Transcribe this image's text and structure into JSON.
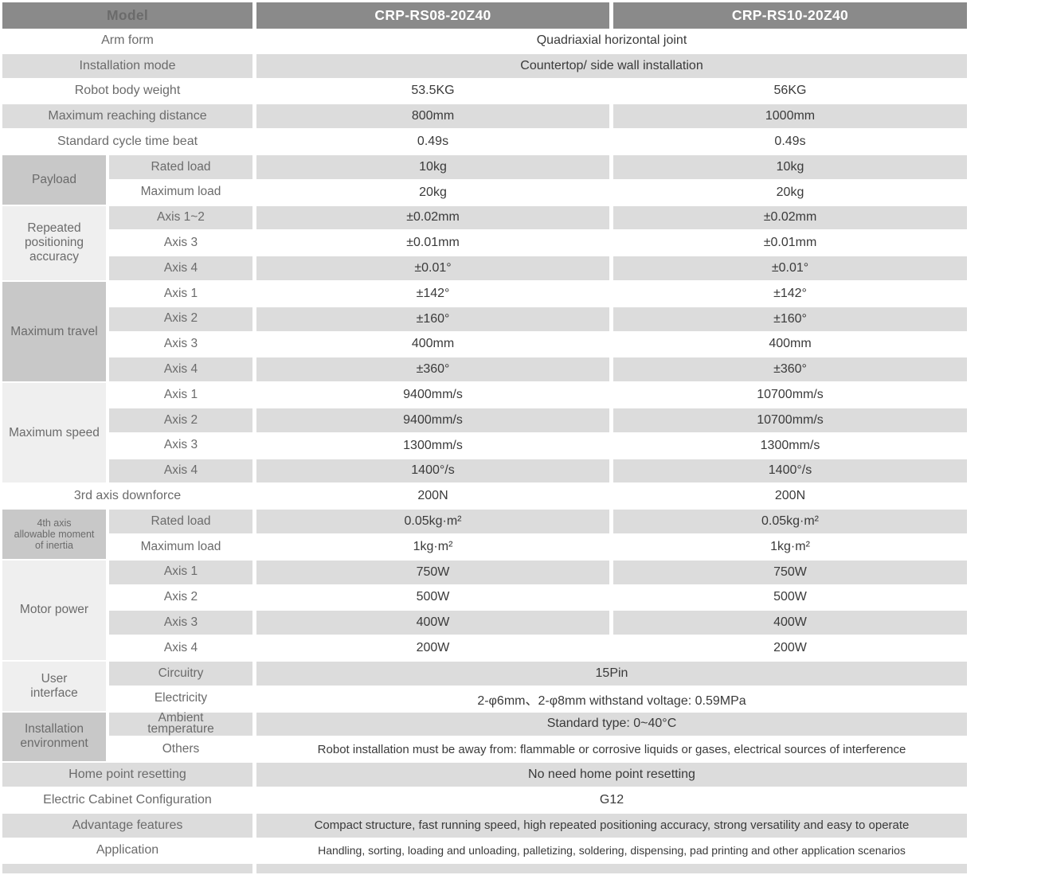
{
  "colors": {
    "header_bg": "#8a8a8a",
    "header_text": "#ffffff",
    "stripe_bg": "#dcdcdc",
    "group_dark_bg": "#c8c8c8",
    "group_light_bg": "#efefef",
    "label_text": "#6b6b6b",
    "value_text": "#3a3a3a"
  },
  "header": {
    "model": "Model",
    "rs08": "CRP-RS08-20Z40",
    "rs10": "CRP-RS10-20Z40"
  },
  "rows": {
    "arm_form": {
      "label": "Arm form",
      "value": "Quadriaxial horizontal joint"
    },
    "installation_mode": {
      "label": "Installation mode",
      "value": "Countertop/ side wall installation"
    },
    "robot_body_weight": {
      "label": "Robot body weight",
      "v1": "53.5KG",
      "v2": "56KG"
    },
    "max_reach": {
      "label": "Maximum reaching distance",
      "v1": "800mm",
      "v2": "1000mm"
    },
    "cycle_time": {
      "label": "Standard cycle time beat",
      "v1": "0.49s",
      "v2": "0.49s"
    },
    "downforce_3rd": {
      "label": "3rd axis downforce",
      "v1": "200N",
      "v2": "200N"
    },
    "home_reset": {
      "label": "Home point resetting",
      "value": "No need home point resetting"
    },
    "cabinet": {
      "label": "Electric Cabinet Configuration",
      "value": "G12"
    },
    "advantage": {
      "label": "Advantage features",
      "value": "Compact structure, fast running speed, high repeated positioning accuracy, strong versatility and easy to operate"
    },
    "application": {
      "label": "Application",
      "value": "Handling, sorting, loading and unloading, palletizing, soldering, dispensing, pad printing and other application scenarios"
    }
  },
  "groups": {
    "payload": {
      "label": "Payload",
      "rows": [
        {
          "label": "Rated load",
          "v1": "10kg",
          "v2": "10kg"
        },
        {
          "label": "Maximum load",
          "v1": "20kg",
          "v2": "20kg"
        }
      ]
    },
    "accuracy": {
      "label": "Repeated\npositioning\naccuracy",
      "rows": [
        {
          "label": "Axis 1~2",
          "v1": "±0.02mm",
          "v2": "±0.02mm"
        },
        {
          "label": "Axis 3",
          "v1": "±0.01mm",
          "v2": "±0.01mm"
        },
        {
          "label": "Axis 4",
          "v1": "±0.01°",
          "v2": "±0.01°"
        }
      ]
    },
    "travel": {
      "label": "Maximum travel",
      "rows": [
        {
          "label": "Axis 1",
          "v1": "±142°",
          "v2": "±142°"
        },
        {
          "label": "Axis 2",
          "v1": "±160°",
          "v2": "±160°"
        },
        {
          "label": "Axis 3",
          "v1": "400mm",
          "v2": "400mm"
        },
        {
          "label": "Axis 4",
          "v1": "±360°",
          "v2": "±360°"
        }
      ]
    },
    "speed": {
      "label": "Maximum speed",
      "rows": [
        {
          "label": "Axis 1",
          "v1": "9400mm/s",
          "v2": "10700mm/s"
        },
        {
          "label": "Axis 2",
          "v1": "9400mm/s",
          "v2": "10700mm/s"
        },
        {
          "label": "Axis 3",
          "v1": "1300mm/s",
          "v2": "1300mm/s"
        },
        {
          "label": "Axis 4",
          "v1": "1400°/s",
          "v2": "1400°/s"
        }
      ]
    },
    "inertia": {
      "label": "4th axis\nallowable moment\nof inertia",
      "rows": [
        {
          "label": "Rated load",
          "v1": "0.05kg·m²",
          "v2": "0.05kg·m²"
        },
        {
          "label": "Maximum load",
          "v1": "1kg·m²",
          "v2": "1kg·m²"
        }
      ]
    },
    "motor": {
      "label": "Motor power",
      "rows": [
        {
          "label": "Axis 1",
          "v1": "750W",
          "v2": "750W"
        },
        {
          "label": "Axis 2",
          "v1": "500W",
          "v2": "500W"
        },
        {
          "label": "Axis 3",
          "v1": "400W",
          "v2": "400W"
        },
        {
          "label": "Axis 4",
          "v1": "200W",
          "v2": "200W"
        }
      ]
    },
    "ui": {
      "label": "User\ninterface",
      "rows": [
        {
          "label": "Circuitry",
          "value": "15Pin"
        },
        {
          "label": "Electricity",
          "value": "2-φ6mm、2-φ8mm withstand voltage: 0.59MPa"
        }
      ]
    },
    "env": {
      "label": "Installation\nenvironment",
      "rows": [
        {
          "label": "Ambient\ntemperature",
          "value": "Standard type:  0~40°C"
        },
        {
          "label": "Others",
          "value": "Robot installation must be away from: flammable or corrosive liquids or gases, electrical sources of interference"
        }
      ]
    }
  }
}
